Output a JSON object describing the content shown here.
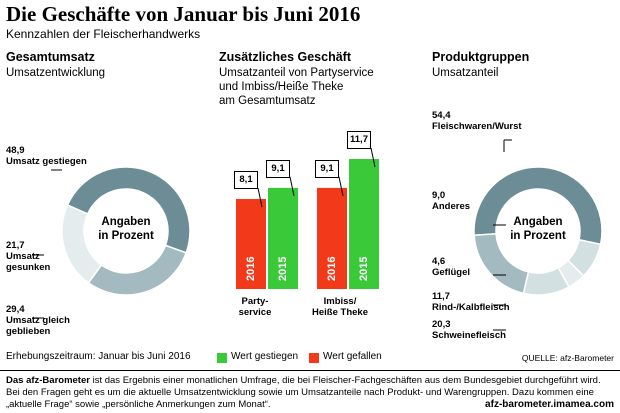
{
  "title": "Die Geschäfte von Januar bis Juni 2016",
  "subtitle": "Kennzahlen der Fleischerhandwerks",
  "colors": {
    "green": "#39c939",
    "red": "#f23a1a",
    "donut_dark": "#6c8c96",
    "donut_mid": "#a3bac0",
    "donut_light": "#d3e0e2",
    "donut_lighter": "#e4ecee"
  },
  "chart_data": [
    {
      "type": "pie",
      "title": "Gesamtumsatz",
      "subtitle": "Umsatzentwicklung",
      "center_text": [
        "Angaben",
        "in Prozent"
      ],
      "slices": [
        {
          "label": "Umsatz gestiegen",
          "value": 48.9,
          "value_text": "48,9"
        },
        {
          "label": "Umsatz gesunken",
          "value": 21.7,
          "value_text": "21,7"
        },
        {
          "label": "Umsatz gleich geblieben",
          "value": 29.4,
          "value_text": "29,4"
        }
      ]
    },
    {
      "type": "bar",
      "title": "Zusätzliches Geschäft",
      "subtitle": [
        "Umsatzanteil von Partyservice",
        "und Imbiss/Heiße Theke",
        "am Gesamtumsatz"
      ],
      "groups": [
        {
          "label": [
            "Party-",
            "service"
          ],
          "bars": [
            {
              "year": "2016",
              "value": 8.1,
              "value_text": "8,1",
              "status": "Wert gefallen"
            },
            {
              "year": "2015",
              "value": 9.1,
              "value_text": "9,1",
              "status": "Wert gestiegen"
            }
          ]
        },
        {
          "label": [
            "Imbiss/",
            "Heiße Theke"
          ],
          "bars": [
            {
              "year": "2016",
              "value": 9.1,
              "value_text": "9,1",
              "status": "Wert gefallen"
            },
            {
              "year": "2015",
              "value": 11.7,
              "value_text": "11,7",
              "status": "Wert gestiegen"
            }
          ]
        }
      ],
      "ylim": [
        0,
        11.7
      ]
    },
    {
      "type": "pie",
      "title": "Produktgruppen",
      "subtitle": "Umsatzanteil",
      "center_text": [
        "Angaben",
        "in Prozent"
      ],
      "slices": [
        {
          "label": "Fleischwaren/Wurst",
          "value": 54.4,
          "value_text": "54,4"
        },
        {
          "label": "Schweinefleisch",
          "value": 20.3,
          "value_text": "20,3"
        },
        {
          "label": "Rind-/Kalbfleisch",
          "value": 11.7,
          "value_text": "11,7"
        },
        {
          "label": "Geflügel",
          "value": 4.6,
          "value_text": "4,6"
        },
        {
          "label": "Anderes",
          "value": 9.0,
          "value_text": "9,0"
        }
      ]
    }
  ],
  "legend": {
    "up": "Wert gestiegen",
    "down": "Wert gefallen"
  },
  "period": "Erhebungszeitraum: Januar bis Juni 2016",
  "source": "QUELLE: afz-Barometer",
  "footer": {
    "bold_lead": "Das afz-Barometer",
    "text": " ist das Ergebnis einer monatlichen Umfrage, die bei Fleischer-Fachgeschäften aus dem Bundesgebiet durchgeführt wird. Bei den Fragen geht es um die aktuelle Umsatzentwicklung sowie um Umsatzanteile nach Produkt- und Warengruppen. Dazu kommen eine „aktuelle Frage“ sowie „persönliche Anmerkungen zum Monat“.",
    "url": "afz-barometer.imamea.com"
  }
}
